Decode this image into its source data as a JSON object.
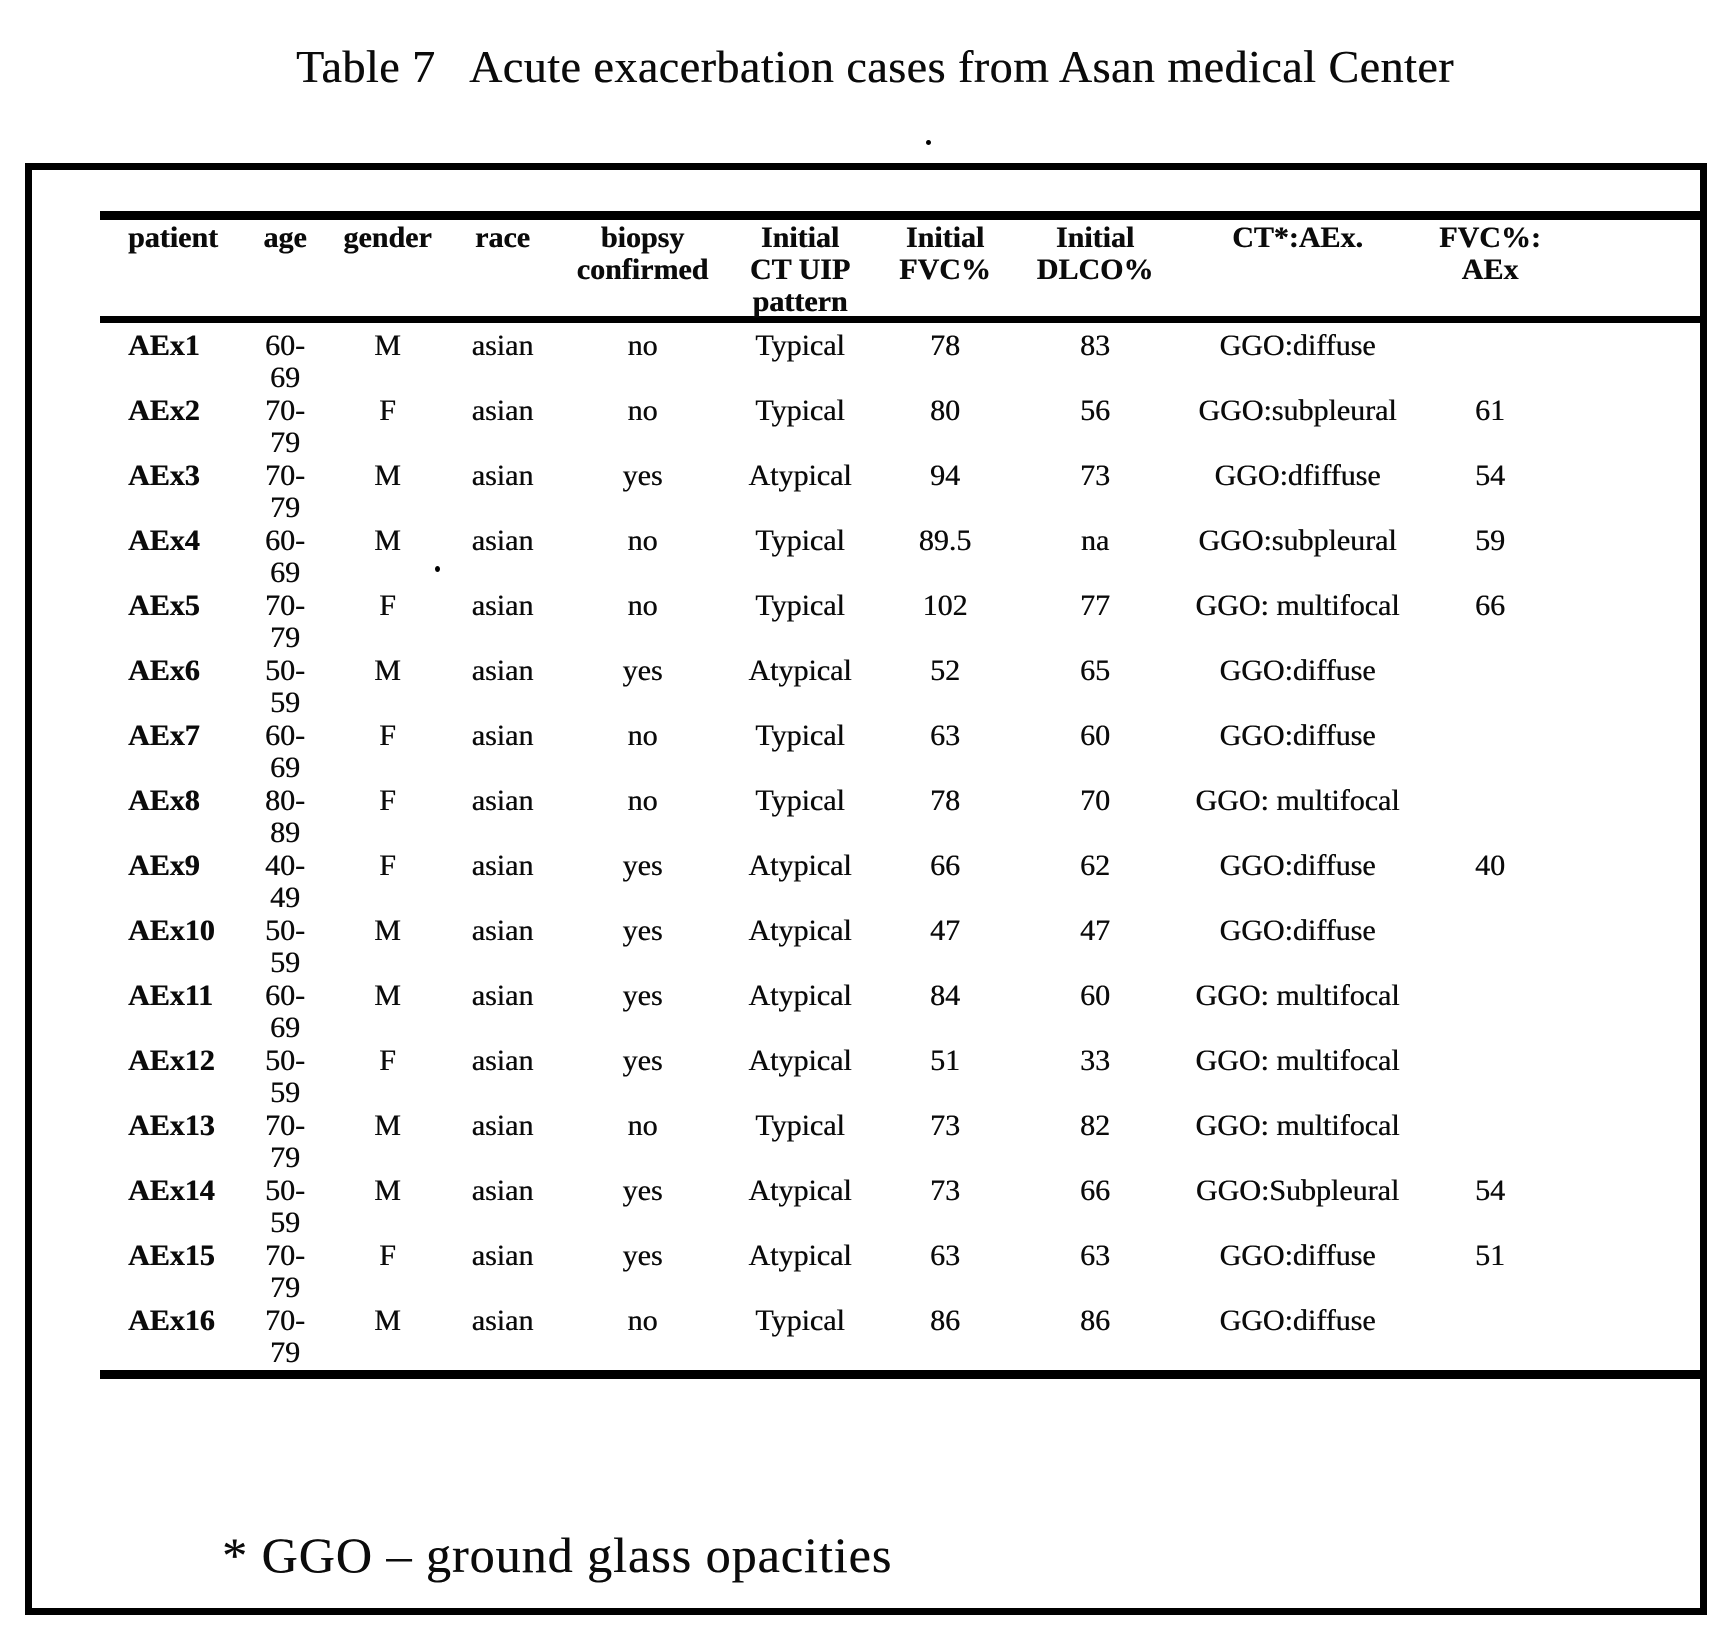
{
  "title": "Table 7   Acute exacerbation cases from Asan medical Center",
  "footnote": "* GGO – ground glass opacities",
  "table": {
    "headers": [
      "patient",
      "age",
      "gender",
      "race",
      "biopsy\nconfirmed",
      "Initial\nCT UIP\npattern",
      "Initial\nFVC%",
      "Initial\nDLCO%",
      "CT*:AEx.",
      "FVC%:\nAEx"
    ],
    "rows": [
      {
        "patient": "AEx1",
        "age": "60-69",
        "gender": "M",
        "race": "asian",
        "biopsy_confirmed": "no",
        "initial_ct_uip_pattern": "Typical",
        "initial_fvc_pct": "78",
        "initial_dlco_pct": "83",
        "ct_aex": "GGO:diffuse",
        "fvc_pct_aex": ""
      },
      {
        "patient": "AEx2",
        "age": "70-79",
        "gender": "F",
        "race": "asian",
        "biopsy_confirmed": "no",
        "initial_ct_uip_pattern": "Typical",
        "initial_fvc_pct": "80",
        "initial_dlco_pct": "56",
        "ct_aex": "GGO:subpleural",
        "fvc_pct_aex": "61"
      },
      {
        "patient": "AEx3",
        "age": "70-79",
        "gender": "M",
        "race": "asian",
        "biopsy_confirmed": "yes",
        "initial_ct_uip_pattern": "Atypical",
        "initial_fvc_pct": "94",
        "initial_dlco_pct": "73",
        "ct_aex": "GGO:dfiffuse",
        "fvc_pct_aex": "54"
      },
      {
        "patient": "AEx4",
        "age": "60-69",
        "gender": "M",
        "race": "asian",
        "biopsy_confirmed": "no",
        "initial_ct_uip_pattern": "Typical",
        "initial_fvc_pct": "89.5",
        "initial_dlco_pct": "na",
        "ct_aex": "GGO:subpleural",
        "fvc_pct_aex": "59"
      },
      {
        "patient": "AEx5",
        "age": "70-79",
        "gender": "F",
        "race": "asian",
        "biopsy_confirmed": "no",
        "initial_ct_uip_pattern": "Typical",
        "initial_fvc_pct": "102",
        "initial_dlco_pct": "77",
        "ct_aex": "GGO: multifocal",
        "fvc_pct_aex": "66"
      },
      {
        "patient": "AEx6",
        "age": "50-59",
        "gender": "M",
        "race": "asian",
        "biopsy_confirmed": "yes",
        "initial_ct_uip_pattern": "Atypical",
        "initial_fvc_pct": "52",
        "initial_dlco_pct": "65",
        "ct_aex": "GGO:diffuse",
        "fvc_pct_aex": ""
      },
      {
        "patient": "AEx7",
        "age": "60-69",
        "gender": "F",
        "race": "asian",
        "biopsy_confirmed": "no",
        "initial_ct_uip_pattern": "Typical",
        "initial_fvc_pct": "63",
        "initial_dlco_pct": "60",
        "ct_aex": "GGO:diffuse",
        "fvc_pct_aex": ""
      },
      {
        "patient": "AEx8",
        "age": "80-89",
        "gender": "F",
        "race": "asian",
        "biopsy_confirmed": "no",
        "initial_ct_uip_pattern": "Typical",
        "initial_fvc_pct": "78",
        "initial_dlco_pct": "70",
        "ct_aex": "GGO: multifocal",
        "fvc_pct_aex": ""
      },
      {
        "patient": "AEx9",
        "age": "40-49",
        "gender": "F",
        "race": "asian",
        "biopsy_confirmed": "yes",
        "initial_ct_uip_pattern": "Atypical",
        "initial_fvc_pct": "66",
        "initial_dlco_pct": "62",
        "ct_aex": "GGO:diffuse",
        "fvc_pct_aex": "40"
      },
      {
        "patient": "AEx10",
        "age": "50-59",
        "gender": "M",
        "race": "asian",
        "biopsy_confirmed": "yes",
        "initial_ct_uip_pattern": "Atypical",
        "initial_fvc_pct": "47",
        "initial_dlco_pct": "47",
        "ct_aex": "GGO:diffuse",
        "fvc_pct_aex": ""
      },
      {
        "patient": "AEx11",
        "age": "60-69",
        "gender": "M",
        "race": "asian",
        "biopsy_confirmed": "yes",
        "initial_ct_uip_pattern": "Atypical",
        "initial_fvc_pct": "84",
        "initial_dlco_pct": "60",
        "ct_aex": "GGO: multifocal",
        "fvc_pct_aex": ""
      },
      {
        "patient": "AEx12",
        "age": "50-59",
        "gender": "F",
        "race": "asian",
        "biopsy_confirmed": "yes",
        "initial_ct_uip_pattern": "Atypical",
        "initial_fvc_pct": "51",
        "initial_dlco_pct": "33",
        "ct_aex": "GGO: multifocal",
        "fvc_pct_aex": ""
      },
      {
        "patient": "AEx13",
        "age": "70-79",
        "gender": "M",
        "race": "asian",
        "biopsy_confirmed": "no",
        "initial_ct_uip_pattern": "Typical",
        "initial_fvc_pct": "73",
        "initial_dlco_pct": "82",
        "ct_aex": "GGO: multifocal",
        "fvc_pct_aex": ""
      },
      {
        "patient": "AEx14",
        "age": "50-59",
        "gender": "M",
        "race": "asian",
        "biopsy_confirmed": "yes",
        "initial_ct_uip_pattern": "Atypical",
        "initial_fvc_pct": "73",
        "initial_dlco_pct": "66",
        "ct_aex": "GGO:Subpleural",
        "fvc_pct_aex": "54"
      },
      {
        "patient": "AEx15",
        "age": "70-79",
        "gender": "F",
        "race": "asian",
        "biopsy_confirmed": "yes",
        "initial_ct_uip_pattern": "Atypical",
        "initial_fvc_pct": "63",
        "initial_dlco_pct": "63",
        "ct_aex": "GGO:diffuse",
        "fvc_pct_aex": "51"
      },
      {
        "patient": "AEx16",
        "age": "70-79",
        "gender": "M",
        "race": "asian",
        "biopsy_confirmed": "no",
        "initial_ct_uip_pattern": "Typical",
        "initial_fvc_pct": "86",
        "initial_dlco_pct": "86",
        "ct_aex": "GGO:diffuse",
        "fvc_pct_aex": ""
      }
    ]
  },
  "ink_color": "#0b0b0b"
}
